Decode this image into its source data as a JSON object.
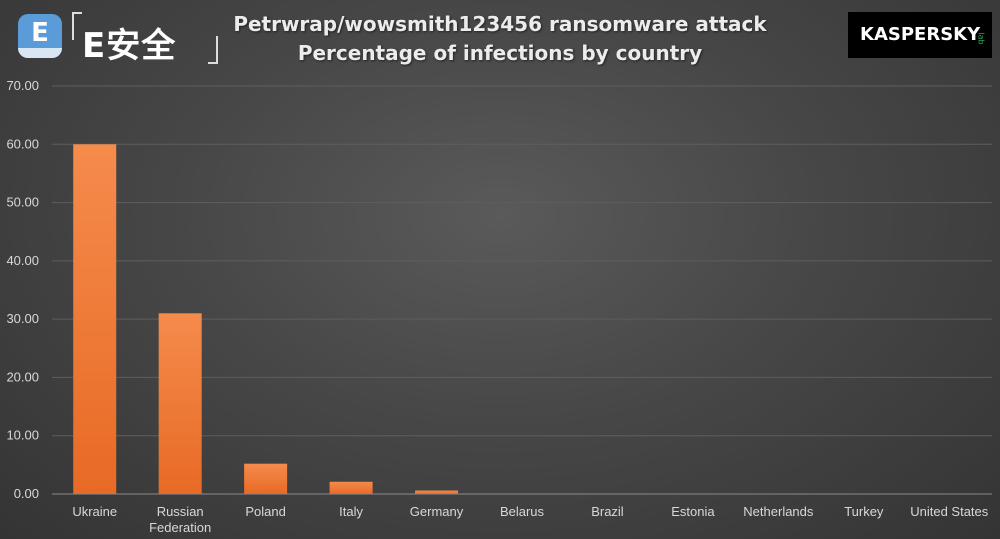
{
  "logo_left": {
    "badge_letter": "E",
    "text": "E安全"
  },
  "title_lines": [
    "Petrwrap/wowsmith123456 ransomware attack",
    "Percentage of infections by country"
  ],
  "logo_right": {
    "text": "KASPERSKY",
    "sub": "lab",
    "accent_color": "#2eaa5a"
  },
  "chart_data": {
    "type": "bar",
    "title": "Petrwrap/wowsmith123456 ransomware attack Percentage of infections by country",
    "categories": [
      "Ukraine",
      "Russian Federation",
      "Poland",
      "Italy",
      "Germany",
      "Belarus",
      "Brazil",
      "Estonia",
      "Netherlands",
      "Turkey",
      "United States"
    ],
    "category_lines": [
      [
        "Ukraine"
      ],
      [
        "Russian",
        "Federation"
      ],
      [
        "Poland"
      ],
      [
        "Italy"
      ],
      [
        "Germany"
      ],
      [
        "Belarus"
      ],
      [
        "Brazil"
      ],
      [
        "Estonia"
      ],
      [
        "Netherlands"
      ],
      [
        "Turkey"
      ],
      [
        "United States"
      ]
    ],
    "values": [
      60.0,
      31.0,
      5.2,
      2.1,
      0.6,
      0.0,
      0.0,
      0.0,
      0.0,
      0.0,
      0.0
    ],
    "ylim": [
      0,
      70
    ],
    "yticks": [
      "0.00",
      "10.00",
      "20.00",
      "30.00",
      "40.00",
      "50.00",
      "60.00",
      "70.00"
    ],
    "grid": true,
    "bar_color_top": "#f58b4c",
    "bar_color_bottom": "#e86a25"
  }
}
